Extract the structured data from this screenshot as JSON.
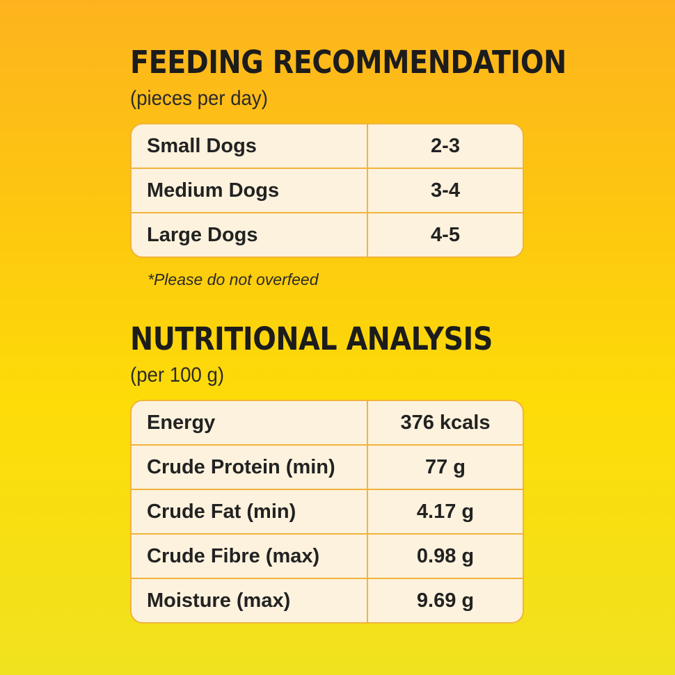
{
  "feeding": {
    "title": "FEEDING RECOMMENDATION",
    "subtitle": "(pieces per day)",
    "rows": [
      {
        "label": "Small Dogs",
        "value": "2-3"
      },
      {
        "label": "Medium Dogs",
        "value": "3-4"
      },
      {
        "label": "Large Dogs",
        "value": "4-5"
      }
    ],
    "note": "*Please do not overfeed"
  },
  "nutrition": {
    "title": "NUTRITIONAL ANALYSIS",
    "subtitle": "(per 100 g)",
    "rows": [
      {
        "label": "Energy",
        "value": "376 kcals"
      },
      {
        "label": "Crude Protein (min)",
        "value": "77 g"
      },
      {
        "label": "Crude Fat (min)",
        "value": "4.17 g"
      },
      {
        "label": "Crude Fibre (max)",
        "value": "0.98 g"
      },
      {
        "label": "Moisture (max)",
        "value": "9.69 g"
      }
    ]
  },
  "colors": {
    "background_top": "#fdb31e",
    "background_bottom": "#f0e21f",
    "table_fill": "#fdf2dd",
    "table_border": "#f1b33a",
    "text": "#1e1e1e"
  }
}
